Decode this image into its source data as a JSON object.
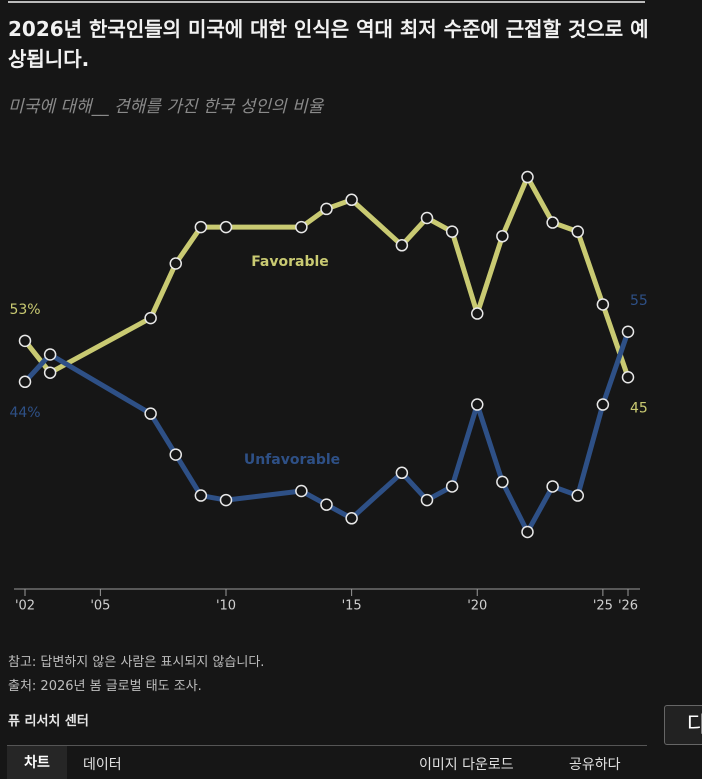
{
  "chart_data": {
    "type": "line",
    "title": "2026년 한국인들의 미국에 대한 인식은 역대 최저 수준에 근접할 것으로 예상됩니다.",
    "subtitle": "미국에 대해__ 견해를 가진 한국 성인의 비율",
    "x": [
      2002,
      2003,
      2007,
      2008,
      2009,
      2010,
      2013,
      2014,
      2015,
      2017,
      2018,
      2019,
      2020,
      2021,
      2022,
      2023,
      2024,
      2025,
      2026
    ],
    "series": [
      {
        "name": "Favorable",
        "color": "#c9ca72",
        "values": [
          53,
          46,
          58,
          70,
          78,
          78,
          78,
          82,
          84,
          74,
          80,
          77,
          59,
          76,
          89,
          79,
          77,
          61,
          45
        ],
        "value_labels": [
          "53%",
          null,
          null,
          null,
          null,
          null,
          null,
          null,
          null,
          null,
          null,
          null,
          null,
          null,
          null,
          null,
          null,
          null,
          "45"
        ]
      },
      {
        "name": "Unfavorable",
        "color": "#2e5086",
        "values": [
          44,
          50,
          37,
          28,
          19,
          18,
          20,
          17,
          14,
          24,
          18,
          21,
          39,
          22,
          11,
          21,
          19,
          39,
          55
        ],
        "value_labels": [
          "44%",
          null,
          null,
          null,
          null,
          null,
          null,
          null,
          null,
          null,
          null,
          null,
          null,
          null,
          null,
          null,
          null,
          null,
          "55"
        ]
      }
    ],
    "xlim": [
      2002,
      2026
    ],
    "xticks": [
      {
        "value": 2002,
        "label": "'02"
      },
      {
        "value": 2005,
        "label": "'05"
      },
      {
        "value": 2010,
        "label": "'10"
      },
      {
        "value": 2015,
        "label": "'15"
      },
      {
        "value": 2020,
        "label": "'20"
      },
      {
        "value": 2025,
        "label": "'25"
      },
      {
        "value": 2026,
        "label": "'26"
      }
    ],
    "ylim": [
      0,
      100
    ],
    "note": "참고: 답변하지 않은 사람은 표시되지 않습니다.",
    "source": "출처: 2026년 봄 글로벌 태도 조사.",
    "organization": "퓨 리서치 센터",
    "tabs": [
      "차트",
      "데이터",
      "이미지 다운로드",
      "공유하다"
    ],
    "side_button": "다"
  }
}
